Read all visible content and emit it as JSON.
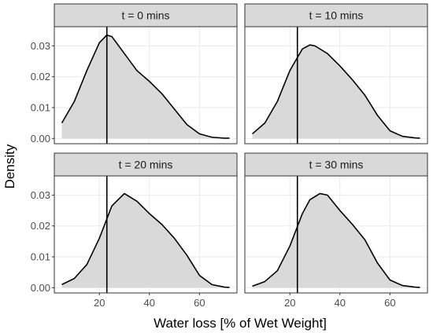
{
  "chart_data": {
    "type": "area",
    "chart_kind": "faceted density plot",
    "xlabel": "Water loss [% of Wet Weight]",
    "ylabel": "Density",
    "xlim": [
      2,
      75
    ],
    "ylim": [
      -0.0017,
      0.0362
    ],
    "x_ticks": [
      20,
      40,
      60
    ],
    "y_ticks": [
      0.0,
      0.01,
      0.02,
      0.03
    ],
    "y_tick_labels": [
      "0.00",
      "0.01",
      "0.02",
      "0.03"
    ],
    "grid": true,
    "fill_color": "#d9d9d9",
    "line_color": "#000000",
    "reference_line_x": 23,
    "facets": [
      {
        "label": "t = 0 mins",
        "x": [
          5,
          10,
          15,
          20,
          23,
          25,
          30,
          35,
          40,
          45,
          50,
          55,
          60,
          65,
          70,
          72
        ],
        "y": [
          0.005,
          0.012,
          0.022,
          0.031,
          0.0335,
          0.033,
          0.0275,
          0.022,
          0.0185,
          0.0145,
          0.0095,
          0.0045,
          0.0015,
          0.0004,
          0.0001,
          0.0001
        ]
      },
      {
        "label": "t = 10 mins",
        "x": [
          5,
          10,
          15,
          20,
          25,
          28,
          30,
          35,
          40,
          45,
          50,
          55,
          60,
          65,
          70,
          72
        ],
        "y": [
          0.0015,
          0.005,
          0.012,
          0.022,
          0.029,
          0.0303,
          0.03,
          0.0275,
          0.0235,
          0.019,
          0.014,
          0.0075,
          0.0025,
          0.0007,
          0.0002,
          0.0001
        ]
      },
      {
        "label": "t = 20 mins",
        "x": [
          5,
          10,
          15,
          20,
          25,
          30,
          35,
          40,
          45,
          50,
          55,
          60,
          65,
          70,
          72
        ],
        "y": [
          0.001,
          0.003,
          0.0075,
          0.016,
          0.0265,
          0.0305,
          0.028,
          0.024,
          0.0205,
          0.016,
          0.0105,
          0.004,
          0.001,
          0.0002,
          0.0001
        ]
      },
      {
        "label": "t = 30 mins",
        "x": [
          5,
          10,
          15,
          20,
          25,
          28,
          32,
          35,
          40,
          45,
          50,
          55,
          60,
          65,
          70,
          72
        ],
        "y": [
          0.0005,
          0.002,
          0.0055,
          0.0135,
          0.024,
          0.0285,
          0.0305,
          0.03,
          0.025,
          0.0205,
          0.0155,
          0.008,
          0.0025,
          0.0007,
          0.0002,
          0.0001
        ]
      }
    ]
  }
}
